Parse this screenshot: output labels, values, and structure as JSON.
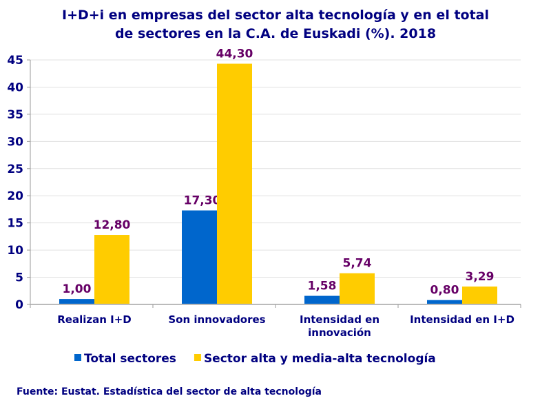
{
  "chart_data": {
    "type": "bar",
    "title_lines": [
      "I+D+i en empresas del sector alta tecnología y en el total",
      "de sectores en la C.A. de Euskadi (%). 2018"
    ],
    "categories": [
      [
        "Realizan I+D"
      ],
      [
        "Son innovadores"
      ],
      [
        "Intensidad en",
        "innovación"
      ],
      [
        "Intensidad en I+D"
      ]
    ],
    "series": [
      {
        "name": "Total sectores",
        "values": [
          1.0,
          17.3,
          1.58,
          0.8
        ],
        "labels": [
          "1,00",
          "17,30",
          "1,58",
          "0,80"
        ],
        "color": "#0066cc"
      },
      {
        "name": "Sector alta y media-alta tecnología",
        "values": [
          12.8,
          44.3,
          5.74,
          3.29
        ],
        "labels": [
          "12,80",
          "44,30",
          "5,74",
          "3,29"
        ],
        "color": "#ffcc00"
      }
    ],
    "ylim": [
      0,
      45
    ],
    "yticks": [
      0,
      5,
      10,
      15,
      20,
      25,
      30,
      35,
      40,
      45
    ],
    "grid": true,
    "legend": "bottom",
    "source": "Fuente: Eustat. Estadística del sector de alta tecnología",
    "colors": {
      "text": "#000080",
      "data_label": "#660066",
      "grid": "#e0e0e0"
    }
  }
}
